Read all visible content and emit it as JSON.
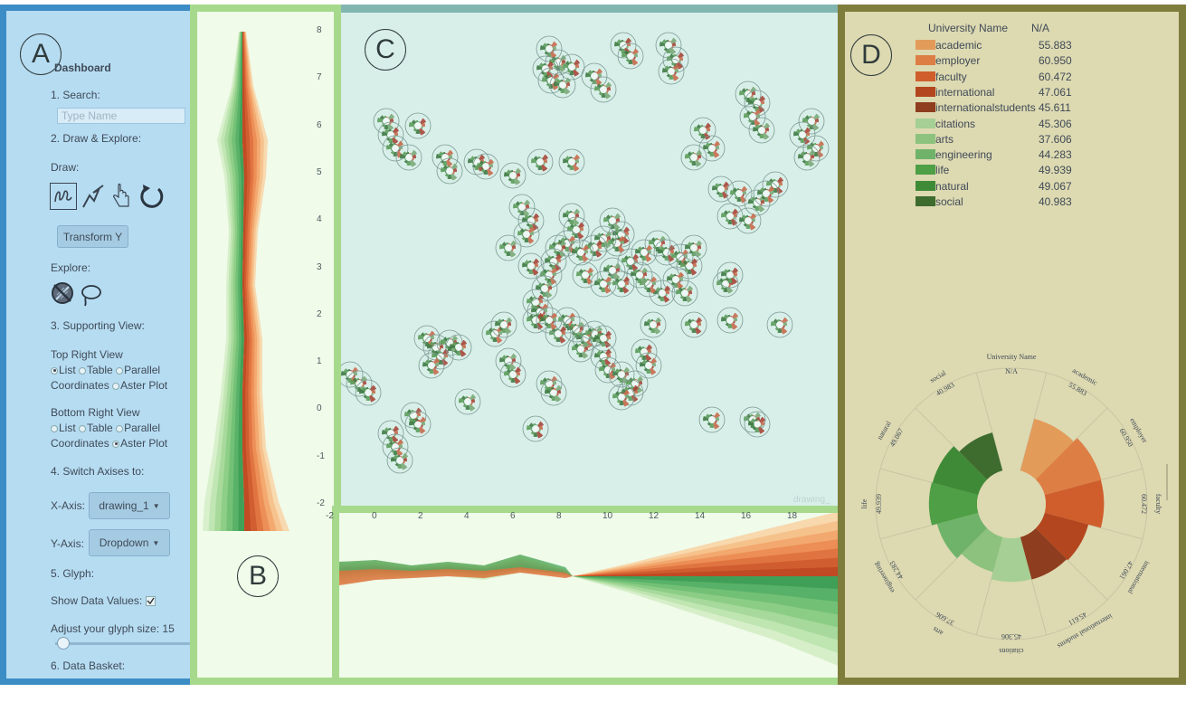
{
  "panel_labels": {
    "a": "A",
    "b": "B",
    "c": "C",
    "d": "D"
  },
  "sidebar": {
    "title": "Dashboard",
    "step1": "1. Search:",
    "search_placeholder": "Type Name",
    "step2": "2. Draw & Explore:",
    "draw_label": "Draw:",
    "draw_tools": [
      "freehand-draw-icon",
      "polyline-draw-icon",
      "pointer-hand-icon",
      "reset-icon"
    ],
    "transform_button": "Transform Y",
    "explore_label": "Explore:",
    "explore_tools": [
      "no-brush-icon",
      "lasso-icon"
    ],
    "step3": "3. Supporting View:",
    "top_right_view_label": "Top Right View",
    "top_right_options": [
      "List",
      "Table",
      "Parallel",
      "Coordinates",
      "Aster Plot"
    ],
    "top_right_selected": "List",
    "bottom_right_view_label": "Bottom Right View",
    "bottom_right_options": [
      "List",
      "Table",
      "Parallel",
      "Coordinates",
      "Aster Plot"
    ],
    "bottom_right_selected": "Aster Plot",
    "step4": "4. Switch Axises to:",
    "x_axis_label": "X-Axis:",
    "x_axis_value": "drawing_1",
    "y_axis_label": "Y-Axis:",
    "y_axis_value": "Dropdown",
    "step5": "5. Glyph:",
    "show_values_label": "Show Data Values:",
    "show_values_checked": true,
    "glyph_size_label": "Adjust your glyph size: 15",
    "glyph_size_value": 15,
    "step6": "6. Data Basket:"
  },
  "vertical_axis_ticks": [
    "8",
    "7",
    "6",
    "5",
    "4",
    "3",
    "2",
    "1",
    "0",
    "-1",
    "-2"
  ],
  "horizontal_axis_ticks": [
    "-2",
    "0",
    "2",
    "4",
    "6",
    "8",
    "10",
    "12",
    "14",
    "16",
    "18"
  ],
  "scatter_caption": "drawing_",
  "list_view": {
    "header_name": "University Name",
    "header_value": "N/A",
    "rows": [
      {
        "label": "academic",
        "value": "55.883",
        "color": "#e39b5a"
      },
      {
        "label": "employer",
        "value": "60.950",
        "color": "#dd7e45"
      },
      {
        "label": "faculty",
        "value": "60.472",
        "color": "#cf5e2c"
      },
      {
        "label": "international",
        "value": "47.061",
        "color": "#b3461f"
      },
      {
        "label": "internationalstudents",
        "value": "45.611",
        "color": "#8e3d1e"
      },
      {
        "label": "citations",
        "value": "45.306",
        "color": "#a6cf95"
      },
      {
        "label": "arts",
        "value": "37.606",
        "color": "#8cc27e"
      },
      {
        "label": "engineering",
        "value": "44.283",
        "color": "#6fb36a"
      },
      {
        "label": "life",
        "value": "49.939",
        "color": "#4e9f45"
      },
      {
        "label": "natural",
        "value": "49.067",
        "color": "#3f8a37"
      },
      {
        "label": "social",
        "value": "40.983",
        "color": "#3d6c2e"
      }
    ]
  },
  "aster": {
    "outer_labels": [
      {
        "name": "University Name",
        "value": "N/A"
      },
      {
        "name": "academic",
        "value": "55.883"
      },
      {
        "name": "employer",
        "value": "60.950"
      },
      {
        "name": "faculty",
        "value": "60.472"
      },
      {
        "name": "international",
        "value": "47.061"
      },
      {
        "name": "international students",
        "value": "45.611"
      },
      {
        "name": "citations",
        "value": "45.306"
      },
      {
        "name": "arts",
        "value": "37.606"
      },
      {
        "name": "engineering",
        "value": "44.283"
      },
      {
        "name": "life",
        "value": "49.939"
      },
      {
        "name": "natural",
        "value": "49.067"
      },
      {
        "name": "social",
        "value": "40.983"
      }
    ]
  }
}
